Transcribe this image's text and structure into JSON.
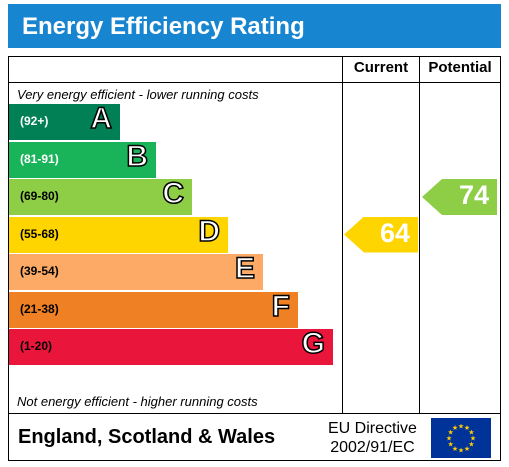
{
  "title": "Energy Efficiency Rating",
  "columns": {
    "current": "Current",
    "potential": "Potential"
  },
  "notes": {
    "top": "Very energy efficient - lower running costs",
    "bottom": "Not energy efficient - higher running costs"
  },
  "bands": [
    {
      "range": "(92+)",
      "letter": "A",
      "color": "#008054"
    },
    {
      "range": "(81-91)",
      "letter": "B",
      "color": "#19b459"
    },
    {
      "range": "(69-80)",
      "letter": "C",
      "color": "#8dce46"
    },
    {
      "range": "(55-68)",
      "letter": "D",
      "color": "#ffd500"
    },
    {
      "range": "(39-54)",
      "letter": "E",
      "color": "#fcaa65"
    },
    {
      "range": "(21-38)",
      "letter": "F",
      "color": "#ef8023"
    },
    {
      "range": "(1-20)",
      "letter": "G",
      "color": "#e9153b"
    }
  ],
  "current": {
    "value": "64",
    "band": "D",
    "color": "#ffd500"
  },
  "potential": {
    "value": "74",
    "band": "C",
    "color": "#8dce46"
  },
  "footer": {
    "region": "England, Scotland & Wales",
    "directive_line1": "EU Directive",
    "directive_line2": "2002/91/EC"
  }
}
